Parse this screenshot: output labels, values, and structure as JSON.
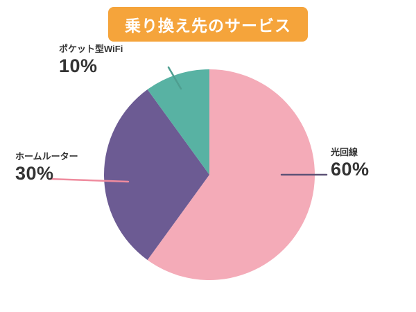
{
  "title": "乗り換え先のサービス",
  "colors": {
    "background": "#FFFFFF",
    "title_bg": "#F5A43B",
    "title_text": "#FFFFFF",
    "label_text": "#333333"
  },
  "chart_data": {
    "type": "pie",
    "title": "乗り換え先のサービス",
    "start_angle_deg": -90,
    "direction": "clockwise",
    "total": 100,
    "legend": "none",
    "slices": [
      {
        "label": "光回線",
        "value": 60,
        "pct_label": "60%",
        "color": "#F4ABB8",
        "leader_color": "#5D5276"
      },
      {
        "label": "ホームルーター",
        "value": 30,
        "pct_label": "30%",
        "color": "#6C5B93",
        "leader_color": "#EF8B9E"
      },
      {
        "label": "ポケット型WiFi",
        "value": 10,
        "pct_label": "10%",
        "color": "#58B2A3",
        "leader_color": "#4E9E90"
      }
    ]
  }
}
